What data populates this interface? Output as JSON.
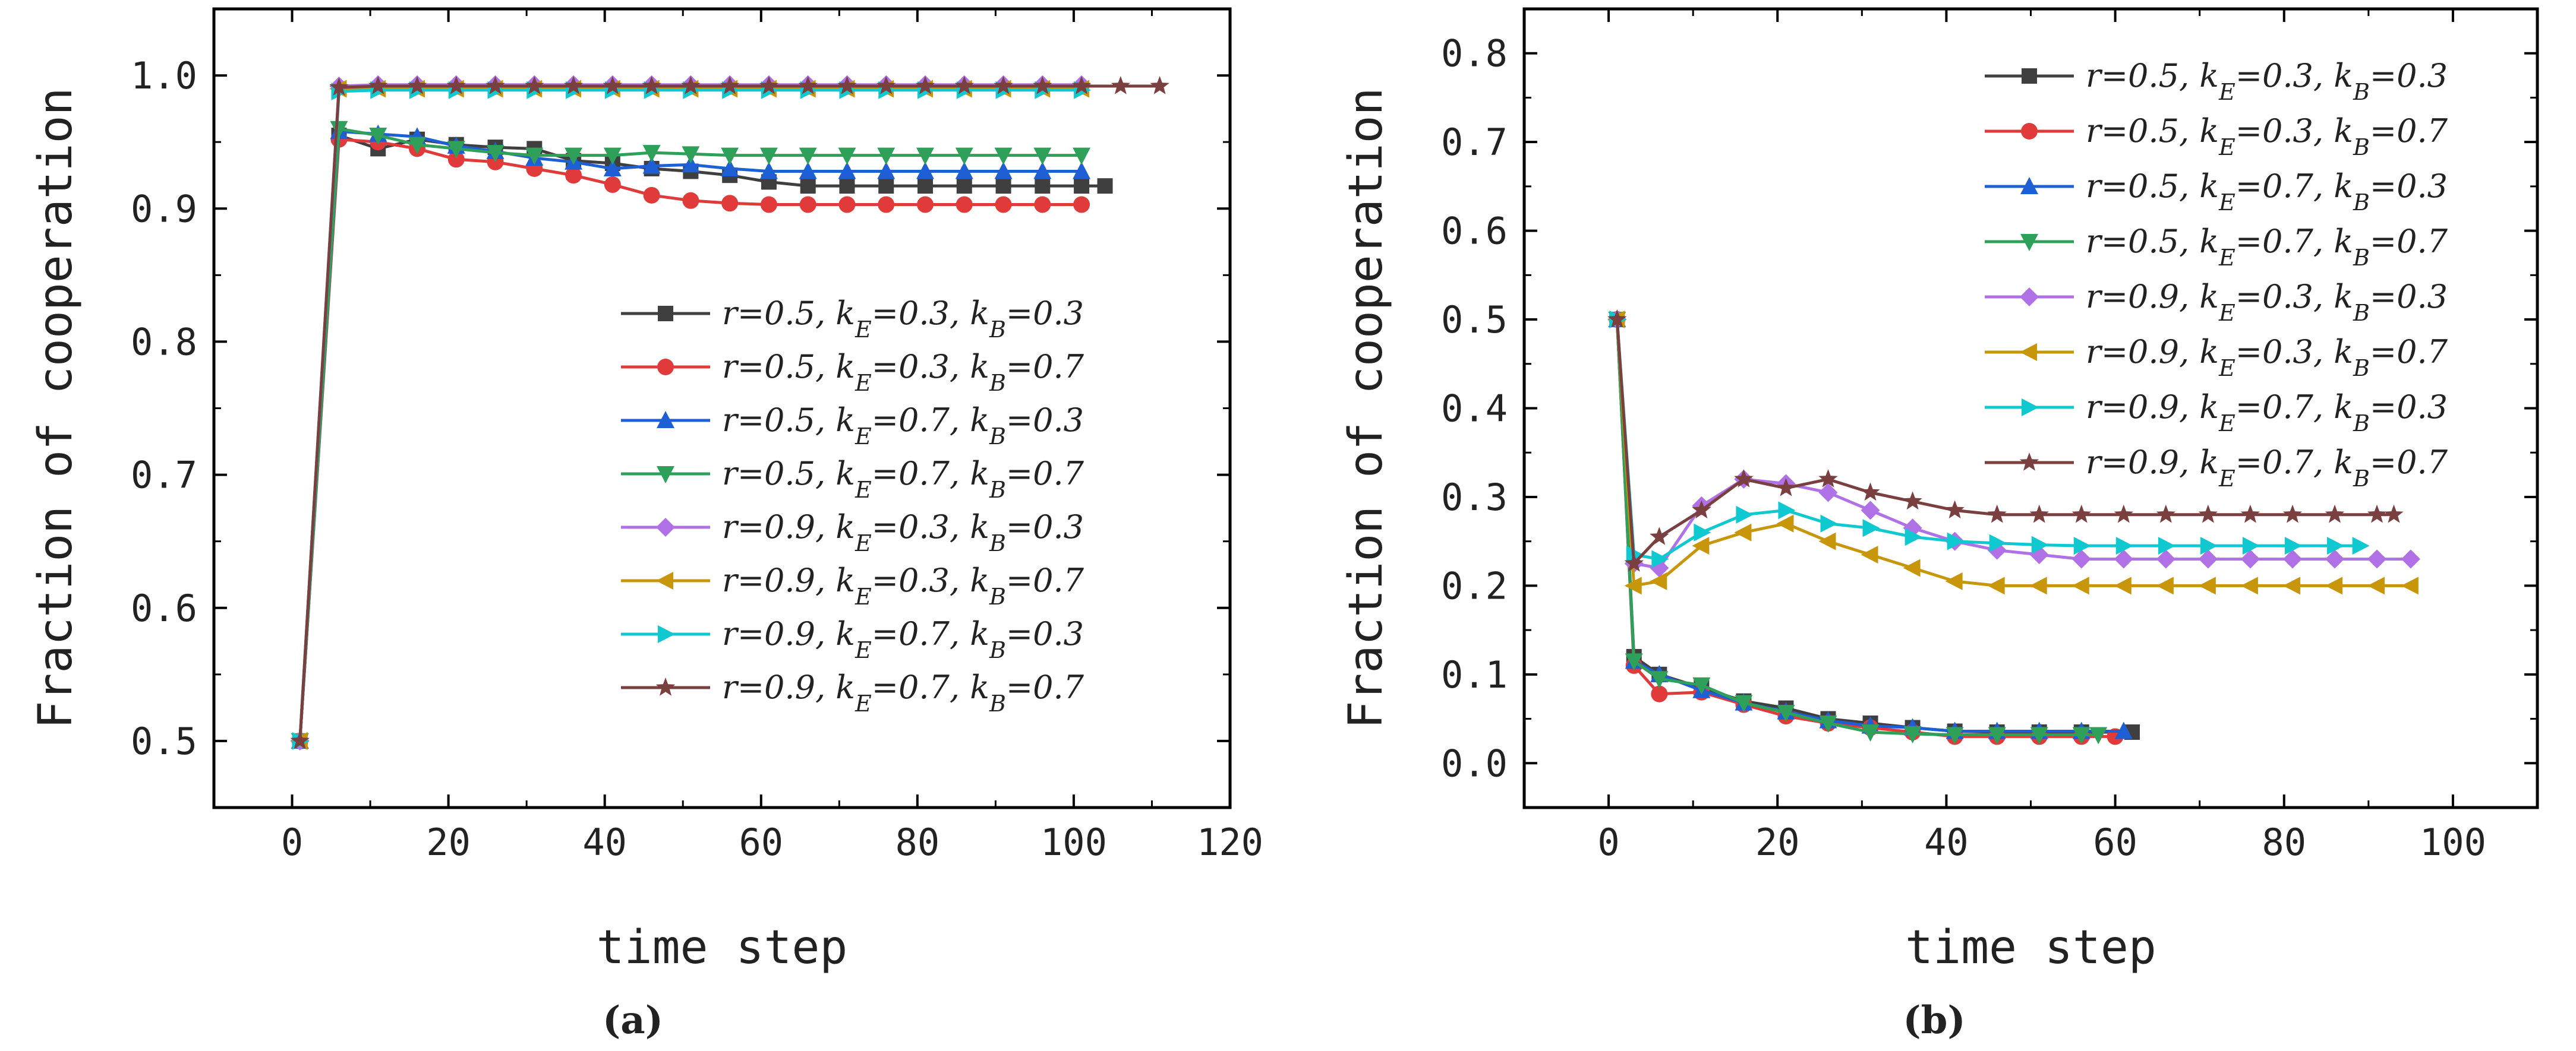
{
  "figure": {
    "panel_label_a": "(a)",
    "panel_label_b": "(b)"
  },
  "colors": {
    "s1": "#3f3f3f",
    "s2": "#e03a3a",
    "s3": "#1f5fd6",
    "s4": "#2ea05a",
    "s5": "#b070e6",
    "s6": "#c8960a",
    "s7": "#10c8d0",
    "s8": "#7a3f3f"
  },
  "chart_data": [
    {
      "id": "a",
      "type": "line",
      "title": "",
      "xlabel": "time step",
      "ylabel": "Fraction of cooperation",
      "xlim": [
        -10,
        120
      ],
      "ylim": [
        0.45,
        1.05
      ],
      "xticks": [
        0,
        20,
        40,
        60,
        80,
        100,
        120
      ],
      "yticks": [
        0.5,
        0.6,
        0.7,
        0.8,
        0.9,
        1.0
      ],
      "xtick_labels": [
        "0",
        "20",
        "40",
        "60",
        "80",
        "100",
        "120"
      ],
      "ytick_labels": [
        "0.5",
        "0.6",
        "0.7",
        "0.8",
        "0.9",
        "1.0"
      ],
      "legend_position": "center-right",
      "series": [
        {
          "name": "r=0.5, k_E=0.3, k_B=0.3",
          "legend": [
            "r=0.5, k",
            "E",
            "=0.3, k",
            "B",
            "=0.3"
          ],
          "color": "#3f3f3f",
          "marker": "square",
          "x": [
            1,
            6,
            11,
            16,
            21,
            26,
            31,
            36,
            41,
            46,
            51,
            56,
            61,
            66,
            71,
            76,
            81,
            86,
            91,
            96,
            101,
            104
          ],
          "y": [
            0.5,
            0.955,
            0.945,
            0.952,
            0.948,
            0.946,
            0.945,
            0.936,
            0.934,
            0.93,
            0.928,
            0.925,
            0.92,
            0.917,
            0.917,
            0.917,
            0.917,
            0.917,
            0.917,
            0.917,
            0.917,
            0.917
          ]
        },
        {
          "name": "r=0.5, k_E=0.3, k_B=0.7",
          "legend": [
            "r=0.5, k",
            "E",
            "=0.3, k",
            "B",
            "=0.7"
          ],
          "color": "#e03a3a",
          "marker": "circle",
          "x": [
            1,
            6,
            11,
            16,
            21,
            26,
            31,
            36,
            41,
            46,
            51,
            56,
            61,
            66,
            71,
            76,
            81,
            86,
            91,
            96,
            101
          ],
          "y": [
            0.5,
            0.952,
            0.95,
            0.945,
            0.937,
            0.935,
            0.93,
            0.925,
            0.918,
            0.91,
            0.906,
            0.904,
            0.903,
            0.903,
            0.903,
            0.903,
            0.903,
            0.903,
            0.903,
            0.903,
            0.903
          ]
        },
        {
          "name": "r=0.5, k_E=0.7, k_B=0.3",
          "legend": [
            "r=0.5, k",
            "E",
            "=0.7, k",
            "B",
            "=0.3"
          ],
          "color": "#1f5fd6",
          "marker": "triangle-up",
          "x": [
            1,
            6,
            11,
            16,
            21,
            26,
            31,
            36,
            41,
            46,
            51,
            56,
            61,
            66,
            71,
            76,
            81,
            86,
            91,
            96,
            101
          ],
          "y": [
            0.5,
            0.958,
            0.956,
            0.954,
            0.947,
            0.943,
            0.938,
            0.935,
            0.93,
            0.932,
            0.933,
            0.93,
            0.928,
            0.928,
            0.928,
            0.928,
            0.928,
            0.928,
            0.928,
            0.928,
            0.928
          ]
        },
        {
          "name": "r=0.5, k_E=0.7, k_B=0.7",
          "legend": [
            "r=0.5, k",
            "E",
            "=0.7, k",
            "B",
            "=0.7"
          ],
          "color": "#2ea05a",
          "marker": "triangle-down",
          "x": [
            1,
            6,
            11,
            16,
            21,
            26,
            31,
            36,
            41,
            46,
            51,
            56,
            61,
            66,
            71,
            76,
            81,
            86,
            91,
            96,
            101
          ],
          "y": [
            0.5,
            0.96,
            0.955,
            0.948,
            0.945,
            0.942,
            0.94,
            0.94,
            0.94,
            0.942,
            0.941,
            0.94,
            0.94,
            0.94,
            0.94,
            0.94,
            0.94,
            0.94,
            0.94,
            0.94,
            0.94
          ]
        },
        {
          "name": "r=0.9, k_E=0.3, k_B=0.3",
          "legend": [
            "r=0.9, k",
            "E",
            "=0.3, k",
            "B",
            "=0.3"
          ],
          "color": "#b070e6",
          "marker": "diamond",
          "x": [
            1,
            6,
            11,
            16,
            21,
            26,
            31,
            36,
            41,
            46,
            51,
            56,
            61,
            66,
            71,
            76,
            81,
            86,
            91,
            96,
            101
          ],
          "y": [
            0.5,
            0.992,
            0.993,
            0.993,
            0.993,
            0.993,
            0.993,
            0.993,
            0.993,
            0.993,
            0.993,
            0.993,
            0.993,
            0.993,
            0.993,
            0.993,
            0.993,
            0.993,
            0.993,
            0.993,
            0.993
          ]
        },
        {
          "name": "r=0.9, k_E=0.3, k_B=0.7",
          "legend": [
            "r=0.9, k",
            "E",
            "=0.3, k",
            "B",
            "=0.7"
          ],
          "color": "#c8960a",
          "marker": "triangle-left",
          "x": [
            1,
            6,
            11,
            16,
            21,
            26,
            31,
            36,
            41,
            46,
            51,
            56,
            61,
            66,
            71,
            76,
            81,
            86,
            91,
            96,
            101
          ],
          "y": [
            0.5,
            0.99,
            0.99,
            0.99,
            0.99,
            0.99,
            0.99,
            0.99,
            0.99,
            0.99,
            0.99,
            0.99,
            0.99,
            0.99,
            0.99,
            0.99,
            0.99,
            0.99,
            0.99,
            0.99,
            0.99
          ]
        },
        {
          "name": "r=0.9, k_E=0.7, k_B=0.3",
          "legend": [
            "r=0.9, k",
            "E",
            "=0.7, k",
            "B",
            "=0.3"
          ],
          "color": "#10c8d0",
          "marker": "triangle-right",
          "x": [
            1,
            6,
            11,
            16,
            21,
            26,
            31,
            36,
            41,
            46,
            51,
            56,
            61,
            66,
            71,
            76,
            81,
            86,
            91,
            96,
            101
          ],
          "y": [
            0.5,
            0.988,
            0.989,
            0.989,
            0.989,
            0.989,
            0.989,
            0.989,
            0.989,
            0.989,
            0.989,
            0.989,
            0.989,
            0.989,
            0.989,
            0.989,
            0.989,
            0.989,
            0.989,
            0.989,
            0.989
          ]
        },
        {
          "name": "r=0.9, k_E=0.7, k_B=0.7",
          "legend": [
            "r=0.9, k",
            "E",
            "=0.7, k",
            "B",
            "=0.7"
          ],
          "color": "#7a3f3f",
          "marker": "star",
          "x": [
            1,
            6,
            11,
            16,
            21,
            26,
            31,
            36,
            41,
            46,
            51,
            56,
            61,
            66,
            71,
            76,
            81,
            86,
            91,
            96,
            101,
            106,
            111
          ],
          "y": [
            0.5,
            0.991,
            0.992,
            0.992,
            0.992,
            0.992,
            0.992,
            0.992,
            0.992,
            0.992,
            0.992,
            0.992,
            0.992,
            0.992,
            0.992,
            0.992,
            0.992,
            0.992,
            0.992,
            0.992,
            0.992,
            0.992,
            0.992
          ]
        }
      ]
    },
    {
      "id": "b",
      "type": "line",
      "title": "",
      "xlabel": "time step",
      "ylabel": "Fraction of cooperation",
      "xlim": [
        -10,
        110
      ],
      "ylim": [
        -0.05,
        0.85
      ],
      "xticks": [
        0,
        20,
        40,
        60,
        80,
        100
      ],
      "yticks": [
        0.0,
        0.1,
        0.2,
        0.3,
        0.4,
        0.5,
        0.6,
        0.7,
        0.8
      ],
      "xtick_labels": [
        "0",
        "20",
        "40",
        "60",
        "80",
        "100"
      ],
      "ytick_labels": [
        "0.0",
        "0.1",
        "0.2",
        "0.3",
        "0.4",
        "0.5",
        "0.6",
        "0.7",
        "0.8"
      ],
      "legend_position": "top-right",
      "series": [
        {
          "name": "r=0.5, k_E=0.3, k_B=0.3",
          "legend": [
            "r=0.5, k",
            "E",
            "=0.3, k",
            "B",
            "=0.3"
          ],
          "color": "#3f3f3f",
          "marker": "square",
          "x": [
            1,
            3,
            6,
            11,
            16,
            21,
            26,
            31,
            36,
            41,
            46,
            51,
            56,
            62
          ],
          "y": [
            0.5,
            0.12,
            0.1,
            0.085,
            0.07,
            0.062,
            0.05,
            0.045,
            0.04,
            0.036,
            0.035,
            0.035,
            0.035,
            0.035
          ]
        },
        {
          "name": "r=0.5, k_E=0.3, k_B=0.7",
          "legend": [
            "r=0.5, k",
            "E",
            "=0.3, k",
            "B",
            "=0.7"
          ],
          "color": "#e03a3a",
          "marker": "circle",
          "x": [
            1,
            3,
            6,
            11,
            16,
            21,
            26,
            31,
            36,
            41,
            46,
            51,
            56,
            60
          ],
          "y": [
            0.5,
            0.11,
            0.078,
            0.08,
            0.066,
            0.053,
            0.045,
            0.04,
            0.035,
            0.03,
            0.03,
            0.03,
            0.03,
            0.03
          ]
        },
        {
          "name": "r=0.5, k_E=0.7, k_B=0.3",
          "legend": [
            "r=0.5, k",
            "E",
            "=0.7, k",
            "B",
            "=0.3"
          ],
          "color": "#1f5fd6",
          "marker": "triangle-up",
          "x": [
            1,
            3,
            6,
            11,
            16,
            21,
            26,
            31,
            36,
            41,
            46,
            51,
            56,
            61
          ],
          "y": [
            0.5,
            0.115,
            0.1,
            0.082,
            0.068,
            0.058,
            0.048,
            0.042,
            0.04,
            0.036,
            0.036,
            0.036,
            0.036,
            0.036
          ]
        },
        {
          "name": "r=0.5, k_E=0.7, k_B=0.7",
          "legend": [
            "r=0.5, k",
            "E",
            "=0.7, k",
            "B",
            "=0.7"
          ],
          "color": "#2ea05a",
          "marker": "triangle-down",
          "x": [
            1,
            3,
            6,
            11,
            16,
            21,
            26,
            31,
            36,
            41,
            46,
            51,
            56,
            58
          ],
          "y": [
            0.5,
            0.115,
            0.095,
            0.088,
            0.068,
            0.057,
            0.045,
            0.035,
            0.033,
            0.032,
            0.032,
            0.032,
            0.032,
            0.032
          ]
        },
        {
          "name": "r=0.9, k_E=0.3, k_B=0.3",
          "legend": [
            "r=0.9, k",
            "E",
            "=0.3, k",
            "B",
            "=0.3"
          ],
          "color": "#b070e6",
          "marker": "diamond",
          "x": [
            1,
            3,
            6,
            11,
            16,
            21,
            26,
            31,
            36,
            41,
            46,
            51,
            56,
            61,
            66,
            71,
            76,
            81,
            86,
            91,
            95
          ],
          "y": [
            0.5,
            0.225,
            0.22,
            0.29,
            0.32,
            0.315,
            0.305,
            0.285,
            0.265,
            0.25,
            0.24,
            0.235,
            0.23,
            0.23,
            0.23,
            0.23,
            0.23,
            0.23,
            0.23,
            0.23,
            0.23
          ]
        },
        {
          "name": "r=0.9, k_E=0.3, k_B=0.7",
          "legend": [
            "r=0.9, k",
            "E",
            "=0.3, k",
            "B",
            "=0.7"
          ],
          "color": "#c8960a",
          "marker": "triangle-left",
          "x": [
            1,
            3,
            6,
            11,
            16,
            21,
            26,
            31,
            36,
            41,
            46,
            51,
            56,
            61,
            66,
            71,
            76,
            81,
            86,
            91,
            95
          ],
          "y": [
            0.5,
            0.2,
            0.205,
            0.245,
            0.26,
            0.27,
            0.25,
            0.235,
            0.22,
            0.205,
            0.2,
            0.2,
            0.2,
            0.2,
            0.2,
            0.2,
            0.2,
            0.2,
            0.2,
            0.2,
            0.2
          ]
        },
        {
          "name": "r=0.9, k_E=0.7, k_B=0.3",
          "legend": [
            "r=0.9, k",
            "E",
            "=0.7, k",
            "B",
            "=0.3"
          ],
          "color": "#10c8d0",
          "marker": "triangle-right",
          "x": [
            1,
            3,
            6,
            11,
            16,
            21,
            26,
            31,
            36,
            41,
            46,
            51,
            56,
            61,
            66,
            71,
            76,
            81,
            86,
            89
          ],
          "y": [
            0.5,
            0.235,
            0.23,
            0.26,
            0.28,
            0.285,
            0.27,
            0.265,
            0.255,
            0.25,
            0.248,
            0.246,
            0.245,
            0.245,
            0.245,
            0.245,
            0.245,
            0.245,
            0.245,
            0.245
          ]
        },
        {
          "name": "r=0.9, k_E=0.7, k_B=0.7",
          "legend": [
            "r=0.9, k",
            "E",
            "=0.7, k",
            "B",
            "=0.7"
          ],
          "color": "#7a3f3f",
          "marker": "star",
          "x": [
            1,
            3,
            6,
            11,
            16,
            21,
            26,
            31,
            36,
            41,
            46,
            51,
            56,
            61,
            66,
            71,
            76,
            81,
            86,
            91,
            93
          ],
          "y": [
            0.5,
            0.225,
            0.255,
            0.285,
            0.32,
            0.31,
            0.32,
            0.305,
            0.295,
            0.285,
            0.28,
            0.28,
            0.28,
            0.28,
            0.28,
            0.28,
            0.28,
            0.28,
            0.28,
            0.28,
            0.28
          ]
        }
      ]
    }
  ]
}
